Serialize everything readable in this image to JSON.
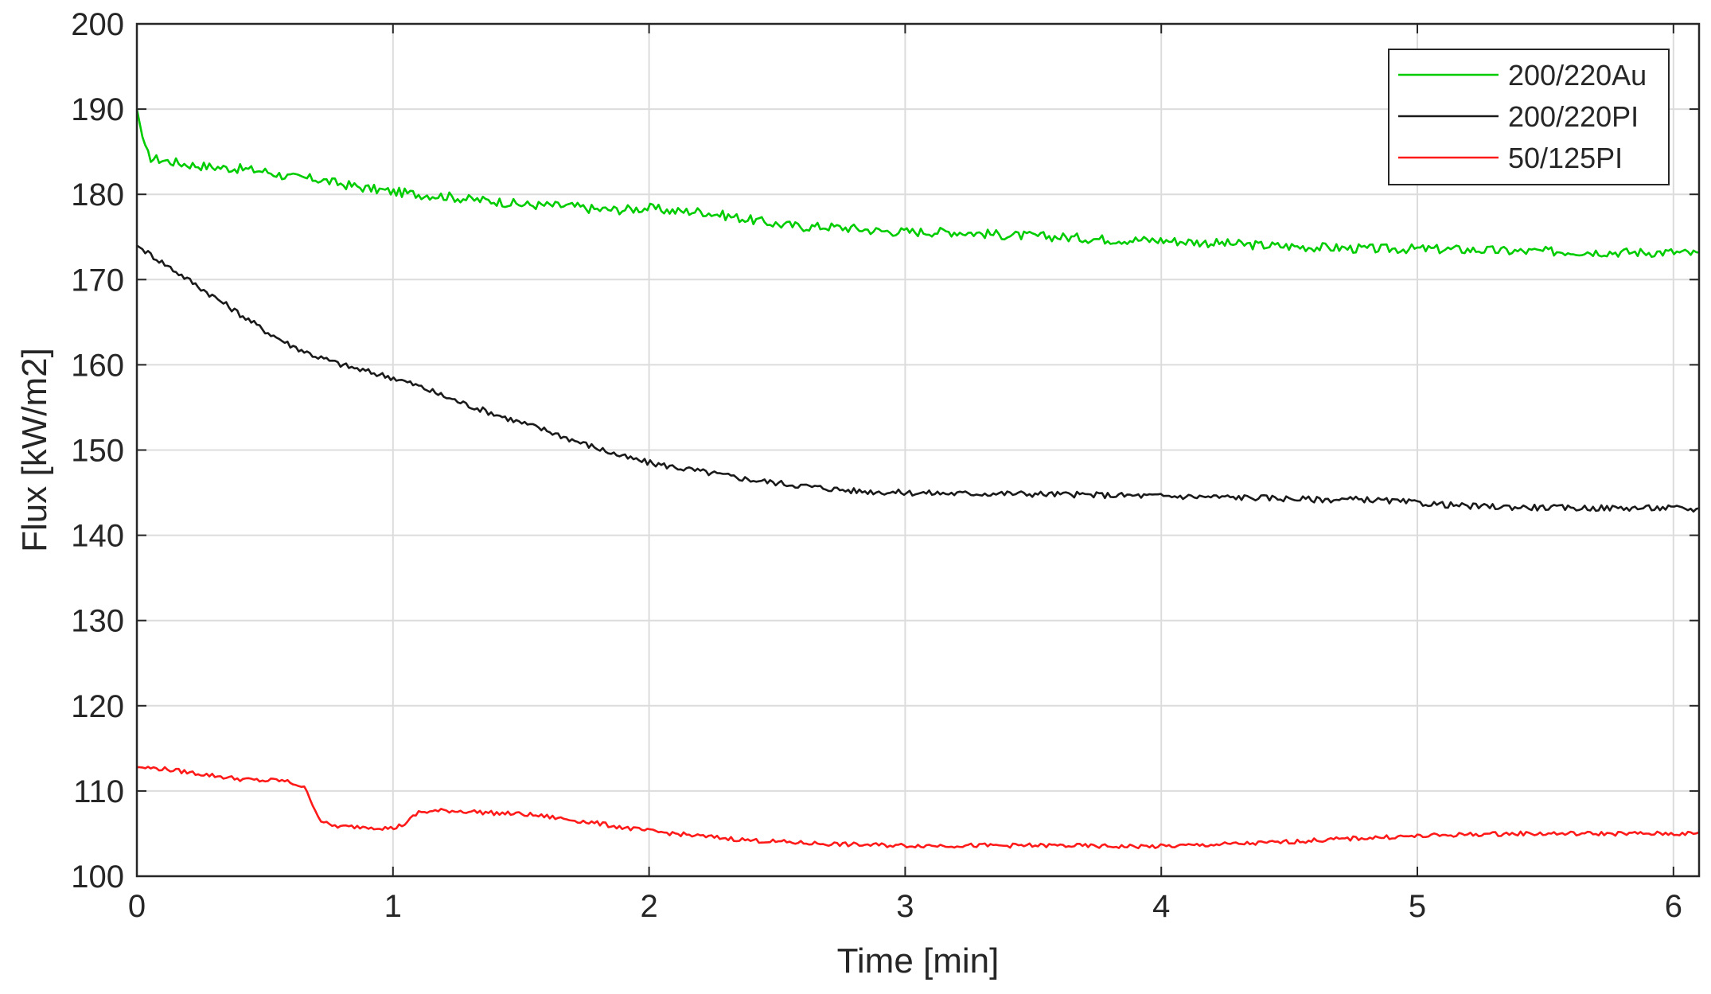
{
  "chart_data": {
    "type": "line",
    "title": "",
    "xlabel": "Time [min]",
    "ylabel": "Flux [kW/m2]",
    "xlim": [
      0,
      6.1
    ],
    "ylim": [
      100,
      200
    ],
    "xticks": [
      0,
      1,
      2,
      3,
      4,
      5,
      6
    ],
    "yticks": [
      100,
      110,
      120,
      130,
      140,
      150,
      160,
      170,
      180,
      190,
      200
    ],
    "grid": true,
    "legend_position": "top-right",
    "series": [
      {
        "name": "200/220Au",
        "color": "#00cc00",
        "x": [
          0,
          0.03,
          0.05,
          0.1,
          0.2,
          0.3,
          0.4,
          0.5,
          0.6,
          0.7,
          0.8,
          0.9,
          1.0,
          1.1,
          1.2,
          1.3,
          1.4,
          1.5,
          1.6,
          1.7,
          1.8,
          1.9,
          2.0,
          2.1,
          2.2,
          2.3,
          2.4,
          2.5,
          2.6,
          2.7,
          2.8,
          2.9,
          3.0,
          3.2,
          3.4,
          3.6,
          3.8,
          4.0,
          4.2,
          4.4,
          4.6,
          4.8,
          5.0,
          5.2,
          5.4,
          5.6,
          5.8,
          6.0,
          6.1
        ],
        "y": [
          190,
          185.5,
          184.3,
          184.0,
          183.5,
          183.2,
          183.0,
          182.7,
          182.0,
          181.8,
          181.2,
          180.7,
          180.3,
          180.0,
          179.8,
          179.4,
          179.2,
          178.8,
          178.7,
          178.6,
          178.2,
          178.2,
          178.4,
          178.0,
          178.0,
          177.5,
          177.0,
          176.5,
          176.2,
          176.2,
          176.0,
          175.7,
          175.6,
          175.6,
          175.2,
          175.0,
          174.7,
          174.6,
          174.3,
          174.0,
          173.8,
          173.6,
          173.6,
          173.5,
          173.3,
          173.3,
          173.2,
          173.2,
          173.0
        ]
      },
      {
        "name": "200/220PI",
        "color": "#1a1a1a",
        "x": [
          0,
          0.1,
          0.2,
          0.3,
          0.4,
          0.5,
          0.6,
          0.7,
          0.8,
          0.9,
          1.0,
          1.1,
          1.2,
          1.3,
          1.4,
          1.5,
          1.6,
          1.7,
          1.8,
          1.9,
          2.0,
          2.2,
          2.4,
          2.6,
          2.8,
          3.0,
          3.2,
          3.4,
          3.6,
          3.8,
          4.0,
          4.2,
          4.4,
          4.6,
          4.8,
          5.0,
          5.2,
          5.4,
          5.6,
          5.8,
          6.0,
          6.1
        ],
        "y": [
          174,
          172,
          170,
          168,
          166,
          164,
          162.3,
          161,
          160,
          159.2,
          158.5,
          157.5,
          156.3,
          155.2,
          154.2,
          153.2,
          152.3,
          151.2,
          150.2,
          149.2,
          148.5,
          147.5,
          146.5,
          145.8,
          145.2,
          145.0,
          144.9,
          144.9,
          144.8,
          144.7,
          144.6,
          144.5,
          144.4,
          144.2,
          144.2,
          143.8,
          143.4,
          143.3,
          143.2,
          143.2,
          143.2,
          143.0
        ]
      },
      {
        "name": "50/125PI",
        "color": "#ff1a1a",
        "x": [
          0,
          0.1,
          0.2,
          0.3,
          0.4,
          0.5,
          0.55,
          0.6,
          0.65,
          0.68,
          0.7,
          0.72,
          0.75,
          0.8,
          0.9,
          1.0,
          1.05,
          1.1,
          1.2,
          1.3,
          1.4,
          1.5,
          1.6,
          1.7,
          1.8,
          1.9,
          2.0,
          2.2,
          2.4,
          2.6,
          2.8,
          3.0,
          3.2,
          3.4,
          3.6,
          3.8,
          4.0,
          4.2,
          4.4,
          4.6,
          4.8,
          5.0,
          5.2,
          5.4,
          5.6,
          5.8,
          6.0,
          6.1
        ],
        "y": [
          112.8,
          112.6,
          112.2,
          111.8,
          111.4,
          111.2,
          111.3,
          111.0,
          110.5,
          109.0,
          107.5,
          106.5,
          106.0,
          105.8,
          105.8,
          105.6,
          106.2,
          107.5,
          107.7,
          107.6,
          107.4,
          107.3,
          107.0,
          106.6,
          106.2,
          105.7,
          105.3,
          104.7,
          104.2,
          103.9,
          103.7,
          103.6,
          103.6,
          103.6,
          103.6,
          103.5,
          103.5,
          103.7,
          103.9,
          104.2,
          104.5,
          104.7,
          104.9,
          105.0,
          105.0,
          105.0,
          105.0,
          105.0
        ]
      }
    ]
  }
}
